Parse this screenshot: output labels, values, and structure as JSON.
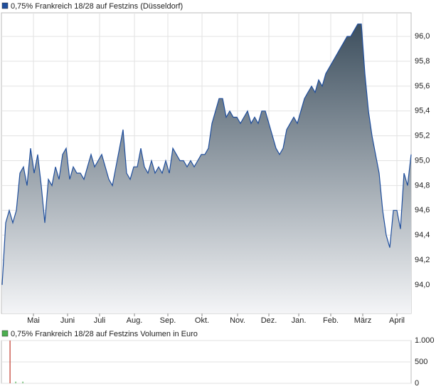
{
  "chart_data": [
    {
      "type": "area",
      "title": "0,75% Frankreich 18/28 auf Festzins (Düsseldorf)",
      "color": "#1f4e9c",
      "values": [
        94.0,
        94.5,
        94.6,
        94.5,
        94.6,
        94.9,
        94.95,
        94.8,
        95.1,
        94.9,
        95.05,
        94.8,
        94.5,
        94.85,
        94.8,
        94.95,
        94.85,
        95.05,
        95.1,
        94.85,
        94.95,
        94.9,
        94.9,
        94.85,
        94.95,
        95.05,
        94.95,
        95.0,
        95.05,
        94.95,
        94.85,
        94.8,
        94.95,
        95.1,
        95.25,
        94.9,
        94.85,
        94.95,
        94.95,
        95.1,
        94.95,
        94.9,
        95.0,
        94.9,
        94.95,
        94.9,
        95.0,
        94.9,
        95.1,
        95.05,
        95.0,
        95.0,
        94.95,
        95.0,
        94.95,
        95.0,
        95.05,
        95.05,
        95.1,
        95.3,
        95.4,
        95.5,
        95.5,
        95.35,
        95.4,
        95.35,
        95.35,
        95.3,
        95.35,
        95.4,
        95.3,
        95.35,
        95.3,
        95.4,
        95.4,
        95.3,
        95.2,
        95.1,
        95.05,
        95.1,
        95.25,
        95.3,
        95.35,
        95.3,
        95.4,
        95.5,
        95.55,
        95.6,
        95.55,
        95.65,
        95.6,
        95.7,
        95.75,
        95.8,
        95.85,
        95.9,
        95.95,
        96.0,
        96.0,
        96.05,
        96.1,
        96.1,
        95.7,
        95.4,
        95.2,
        95.05,
        94.9,
        94.6,
        94.4,
        94.3,
        94.6,
        94.6,
        94.45,
        94.9,
        94.8,
        95.05
      ],
      "xlim": [
        0,
        115
      ],
      "xticks": [
        {
          "value": 8.8,
          "label": "Mai"
        },
        {
          "value": 18.4,
          "label": "Juni"
        },
        {
          "value": 27.4,
          "label": "Juli"
        },
        {
          "value": 37.2,
          "label": "Aug."
        },
        {
          "value": 46.6,
          "label": "Sep."
        },
        {
          "value": 56.2,
          "label": "Okt."
        },
        {
          "value": 66.2,
          "label": "Nov."
        },
        {
          "value": 75,
          "label": "Dez."
        },
        {
          "value": 83.4,
          "label": "Jan."
        },
        {
          "value": 92.4,
          "label": "Feb."
        },
        {
          "value": 101.4,
          "label": "März"
        },
        {
          "value": 111,
          "label": "April"
        }
      ],
      "ylim": [
        93.77,
        96.19
      ],
      "yticks": [
        {
          "value": 94.0,
          "label": "94,0"
        },
        {
          "value": 94.2,
          "label": "94,2"
        },
        {
          "value": 94.4,
          "label": "94,4"
        },
        {
          "value": 94.6,
          "label": "94,6"
        },
        {
          "value": 94.8,
          "label": "94,8"
        },
        {
          "value": 95.0,
          "label": "95,0"
        },
        {
          "value": 95.2,
          "label": "95,2"
        },
        {
          "value": 95.4,
          "label": "95,4"
        },
        {
          "value": 95.6,
          "label": "95,6"
        },
        {
          "value": 95.8,
          "label": "95,8"
        },
        {
          "value": 96.0,
          "label": "96,0"
        }
      ],
      "grid": true
    },
    {
      "type": "bar",
      "title": "0,75% Frankreich 18/28 auf Festzins Volumen in Euro",
      "color": "#4caf50",
      "x": [
        2.2,
        3.8,
        5.8
      ],
      "values": [
        1000,
        40,
        40
      ],
      "colors": [
        "#c0392b",
        "#4caf50",
        "#4caf50"
      ],
      "xlim": [
        0,
        115
      ],
      "ylim": [
        0,
        1000
      ],
      "yticks": [
        0,
        500,
        {
          "value": 1000,
          "label": "1.000"
        }
      ],
      "grid": true
    }
  ]
}
